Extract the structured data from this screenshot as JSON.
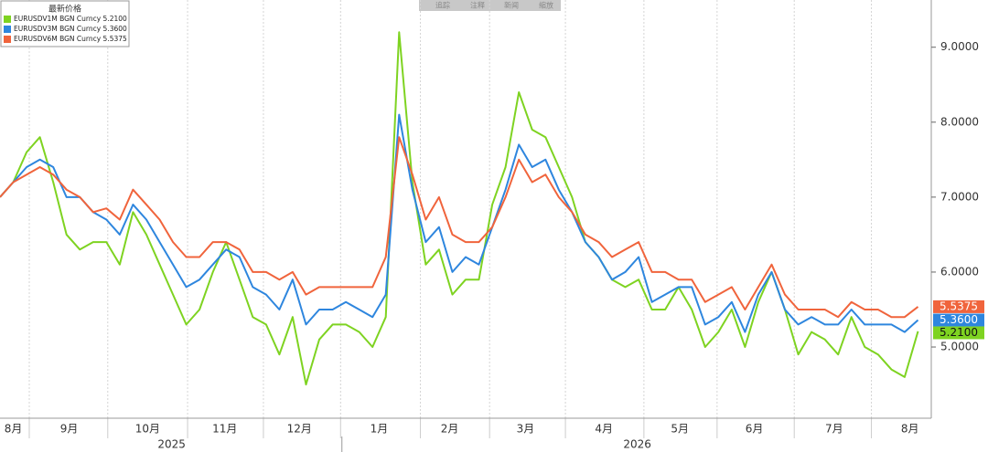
{
  "toolbar": [
    "追踪",
    "注释",
    "新闻",
    "缩放"
  ],
  "chart_data": {
    "type": "line",
    "legend_title": "最新价格",
    "legend": "top-left",
    "grid": true,
    "xlim": [
      0,
      70
    ],
    "ylim": [
      4.05,
      9.63
    ],
    "yticks": [
      {
        "value": 5,
        "label": "5.0000"
      },
      {
        "value": 6,
        "label": "6.0000"
      },
      {
        "value": 7,
        "label": "7.0000"
      },
      {
        "value": 8,
        "label": "8.0000"
      },
      {
        "value": 9,
        "label": "9.0000"
      }
    ],
    "xticks": [
      2.2,
      8.1,
      14.1,
      19.8,
      25.6,
      31.6,
      36.8,
      42.5,
      48.4,
      53.9,
      59.7,
      65.5
    ],
    "month_labels": [
      {
        "value": 1.0,
        "label": "8月"
      },
      {
        "value": 5.2,
        "label": "9月"
      },
      {
        "value": 11.1,
        "label": "10月"
      },
      {
        "value": 16.9,
        "label": "11月"
      },
      {
        "value": 22.5,
        "label": "12月"
      },
      {
        "value": 28.5,
        "label": "1月"
      },
      {
        "value": 33.8,
        "label": "2月"
      },
      {
        "value": 39.5,
        "label": "3月"
      },
      {
        "value": 45.4,
        "label": "4月"
      },
      {
        "value": 51.1,
        "label": "5月"
      },
      {
        "value": 56.7,
        "label": "6月"
      },
      {
        "value": 62.7,
        "label": "7月"
      },
      {
        "value": 68.4,
        "label": "8月"
      }
    ],
    "year_labels": [
      {
        "value": 12.9,
        "label": "2025"
      },
      {
        "value": 47.9,
        "label": "2026"
      }
    ],
    "year_divider": 25.7,
    "series": [
      {
        "name": "EURUSDV1M BGN Curncy 5.2100",
        "color": "#7ed321",
        "end_label": "5.2100",
        "values": [
          7.0,
          7.2,
          7.6,
          7.8,
          7.2,
          6.5,
          6.3,
          6.4,
          6.4,
          6.1,
          6.8,
          6.5,
          6.1,
          5.7,
          5.3,
          5.5,
          6.0,
          6.4,
          5.9,
          5.4,
          5.3,
          4.9,
          5.4,
          4.5,
          5.1,
          5.3,
          5.3,
          5.2,
          5.0,
          5.4,
          9.2,
          7.2,
          6.1,
          6.3,
          5.7,
          5.9,
          5.9,
          6.9,
          7.4,
          8.4,
          7.9,
          7.8,
          7.4,
          7.0,
          6.4,
          6.2,
          5.9,
          5.8,
          5.9,
          5.5,
          5.5,
          5.8,
          5.5,
          5.0,
          5.2,
          5.5,
          5.0,
          5.6,
          6.0,
          5.5,
          4.9,
          5.2,
          5.1,
          4.9,
          5.4,
          5.0,
          4.9,
          4.7,
          4.6,
          5.21
        ]
      },
      {
        "name": "EURUSDV3M BGN Curncy 5.3600",
        "color": "#2e86de",
        "end_label": "5.3600",
        "values": [
          7.0,
          7.2,
          7.4,
          7.5,
          7.4,
          7.0,
          7.0,
          6.8,
          6.7,
          6.5,
          6.9,
          6.7,
          6.4,
          6.1,
          5.8,
          5.9,
          6.1,
          6.3,
          6.2,
          5.8,
          5.7,
          5.5,
          5.9,
          5.3,
          5.5,
          5.5,
          5.6,
          5.5,
          5.4,
          5.7,
          8.1,
          7.1,
          6.4,
          6.6,
          6.0,
          6.2,
          6.1,
          6.6,
          7.1,
          7.7,
          7.4,
          7.5,
          7.1,
          6.8,
          6.4,
          6.2,
          5.9,
          6.0,
          6.2,
          5.6,
          5.7,
          5.8,
          5.8,
          5.3,
          5.4,
          5.6,
          5.2,
          5.7,
          6.0,
          5.5,
          5.3,
          5.4,
          5.3,
          5.3,
          5.5,
          5.3,
          5.3,
          5.3,
          5.2,
          5.36
        ]
      },
      {
        "name": "EURUSDV6M BGN Curncy 5.5375",
        "color": "#f0643c",
        "end_label": "5.5375",
        "values": [
          7.0,
          7.2,
          7.3,
          7.4,
          7.3,
          7.1,
          7.0,
          6.8,
          6.85,
          6.7,
          7.1,
          6.9,
          6.7,
          6.4,
          6.2,
          6.2,
          6.4,
          6.4,
          6.3,
          6.0,
          6.0,
          5.9,
          6.0,
          5.7,
          5.8,
          5.8,
          5.8,
          5.8,
          5.8,
          6.2,
          7.8,
          7.3,
          6.7,
          7.0,
          6.5,
          6.4,
          6.4,
          6.6,
          7.0,
          7.5,
          7.2,
          7.3,
          7.0,
          6.8,
          6.5,
          6.4,
          6.2,
          6.3,
          6.4,
          6.0,
          6.0,
          5.9,
          5.9,
          5.6,
          5.7,
          5.8,
          5.5,
          5.8,
          6.1,
          5.7,
          5.5,
          5.5,
          5.5,
          5.4,
          5.6,
          5.5,
          5.5,
          5.4,
          5.4,
          5.5375
        ]
      }
    ]
  }
}
